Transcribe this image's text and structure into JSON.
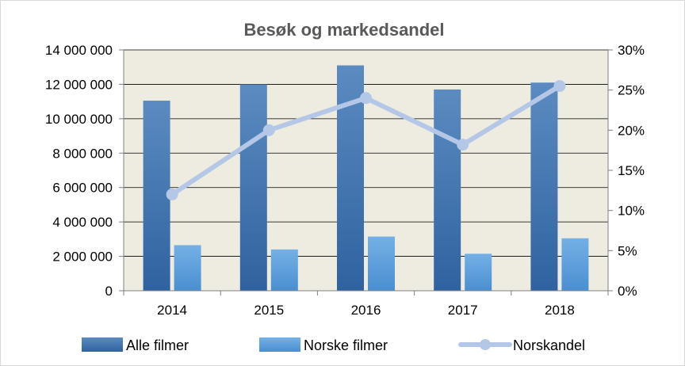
{
  "chart_data": {
    "type": "bar",
    "title": "Besøk og markedsandel",
    "categories": [
      "2014",
      "2015",
      "2016",
      "2017",
      "2018"
    ],
    "series": [
      {
        "name": "Alle filmer",
        "type": "bar",
        "axis": "left",
        "color": "#3f72a8",
        "values": [
          11050000,
          12000000,
          13100000,
          11700000,
          12100000
        ]
      },
      {
        "name": "Norske filmer",
        "type": "bar",
        "axis": "left",
        "color": "#5a9bd8",
        "values": [
          2650000,
          2400000,
          3150000,
          2150000,
          3050000
        ]
      },
      {
        "name": "Norskandel",
        "type": "line",
        "axis": "right",
        "color": "#b4c7e7",
        "values": [
          12,
          20,
          24,
          18.2,
          25.5
        ]
      }
    ],
    "y_left": {
      "min": 0,
      "max": 14000000,
      "step": 2000000,
      "tick_labels": [
        "0",
        "2 000 000",
        "4 000 000",
        "6 000 000",
        "8 000 000",
        "10 000 000",
        "12 000 000",
        "14 000 000"
      ]
    },
    "y_right": {
      "min": 0,
      "max": 30,
      "step": 5,
      "tick_labels": [
        "0%",
        "5%",
        "10%",
        "15%",
        "20%",
        "25%",
        "30%"
      ]
    },
    "plot_background": "#eeece1",
    "grid": true,
    "legend_position": "bottom"
  }
}
